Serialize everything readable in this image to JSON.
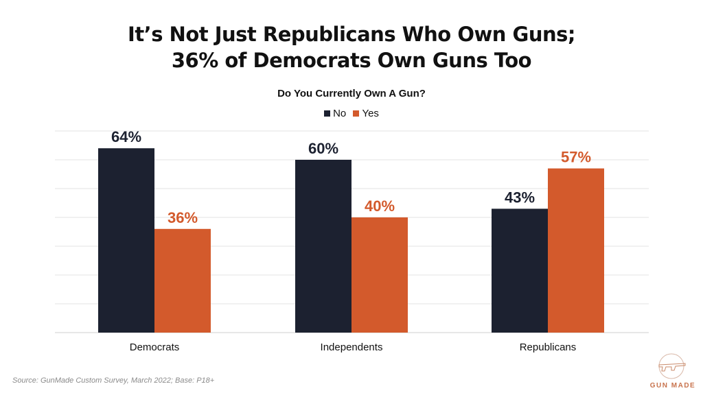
{
  "header": {
    "title_line1": "It’s Not Just Republicans Who Own Guns;",
    "title_line2": "36% of Democrats Own Guns Too"
  },
  "chart_data": {
    "type": "bar",
    "title": "Do You Currently Own A Gun?",
    "categories": [
      "Democrats",
      "Independents",
      "Republicans"
    ],
    "series": [
      {
        "name": "No",
        "values": [
          64,
          60,
          43
        ],
        "color": "#1c2130",
        "label_color": "#1c2130"
      },
      {
        "name": "Yes",
        "values": [
          36,
          40,
          57
        ],
        "color": "#d35a2c",
        "label_color": "#d35a2c"
      }
    ],
    "data_labels": [
      [
        "64%",
        "60%",
        "43%"
      ],
      [
        "36%",
        "40%",
        "57%"
      ]
    ],
    "xlabel": "",
    "ylabel": "",
    "ylim": [
      0,
      70
    ],
    "grid": true,
    "legend_position": "top-center"
  },
  "footer": {
    "source": "Source: GunMade Custom Survey, March 2022; Base: P18+",
    "logo_text": "GUN MADE"
  }
}
